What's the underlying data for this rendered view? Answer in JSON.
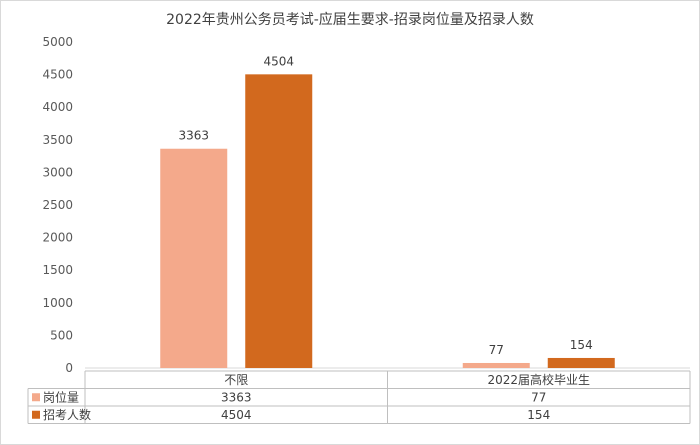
{
  "chart_data": {
    "type": "bar",
    "title": "2022年贵州公务员考试-应届生要求-招录岗位量及招录人数",
    "categories": [
      "不限",
      "2022届高校毕业生"
    ],
    "series": [
      {
        "name": "岗位量",
        "values": [
          3363,
          77
        ],
        "color": "#f4a98b"
      },
      {
        "name": "招考人数",
        "values": [
          4504,
          154
        ],
        "color": "#d2691e"
      }
    ],
    "ylim": [
      0,
      5000
    ],
    "yticks": [
      0,
      500,
      1000,
      1500,
      2000,
      2500,
      3000,
      3500,
      4000,
      4500,
      5000
    ],
    "xlabel": "",
    "ylabel": "",
    "grid": false,
    "legend": "data-table"
  }
}
